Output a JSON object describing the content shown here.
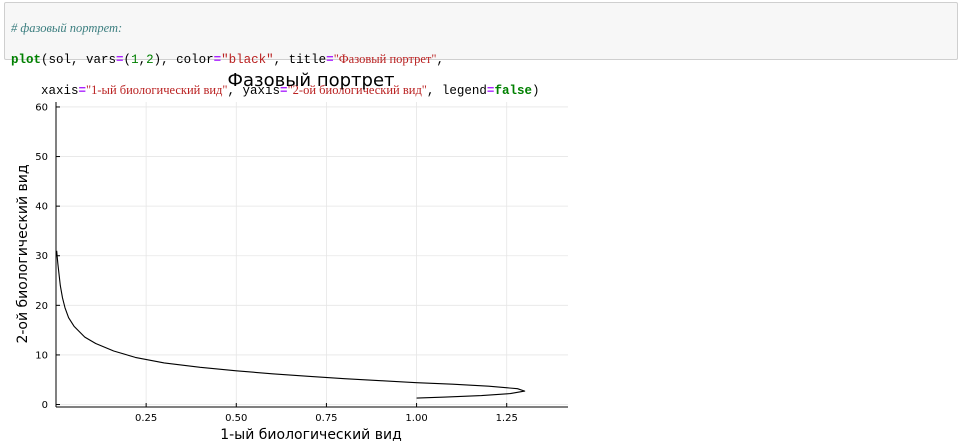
{
  "code": {
    "comment": "# фазовый портрет:",
    "fn_name": "plot",
    "open_args": "(sol, vars",
    "eq1": "=",
    "vars_open": "(",
    "var1": "1",
    "comma": ",",
    "var2": "2",
    "vars_close": "), color",
    "eq2": "=",
    "color_value": "\"black\"",
    "title_key": ", title",
    "eq3": "=",
    "title_value": "\"Фазовый портрет\"",
    "trail1": ",",
    "indent": "    xaxis",
    "eq4": "=",
    "xaxis_value": "\"1-ый биологический вид\"",
    "yaxis_key": ", yaxis",
    "eq5": "=",
    "yaxis_value": "\"2-ой биологический вид\"",
    "legend_key": ", legend",
    "eq6": "=",
    "legend_value": "false",
    "close": ")"
  },
  "chart_data": {
    "type": "line",
    "title": "Фазовый портрет",
    "xlabel": "1-ый биологический вид",
    "ylabel": "2-ой биологический вид",
    "xlim": [
      0,
      1.42
    ],
    "ylim": [
      -0.5,
      61
    ],
    "xticks": [
      0.25,
      0.5,
      0.75,
      1.0,
      1.25
    ],
    "xtick_labels": [
      "0.25",
      "0.50",
      "0.75",
      "1.00",
      "1.25"
    ],
    "yticks": [
      0,
      10,
      20,
      30,
      40,
      50,
      60
    ],
    "ytick_labels": [
      "0",
      "10",
      "20",
      "30",
      "40",
      "50",
      "60"
    ],
    "grid": true,
    "legend": false,
    "line_color": "#000000",
    "series": [
      {
        "x": [
          1.0,
          1.08,
          1.18,
          1.26,
          1.3,
          1.28,
          1.2,
          1.1,
          1.0,
          0.9,
          0.8,
          0.7,
          0.6,
          0.5,
          0.4,
          0.3,
          0.22,
          0.16,
          0.11,
          0.08,
          0.05,
          0.035,
          0.025,
          0.018,
          0.012,
          0.008,
          0.005,
          0.003,
          0.002
        ],
        "y": [
          1.3,
          1.5,
          1.8,
          2.2,
          2.7,
          3.2,
          3.7,
          4.1,
          4.4,
          4.8,
          5.2,
          5.7,
          6.2,
          6.8,
          7.5,
          8.4,
          9.5,
          10.8,
          12.3,
          13.6,
          15.8,
          17.5,
          19.5,
          21.5,
          24.0,
          26.5,
          28.5,
          30.0,
          31.0
        ]
      }
    ]
  }
}
